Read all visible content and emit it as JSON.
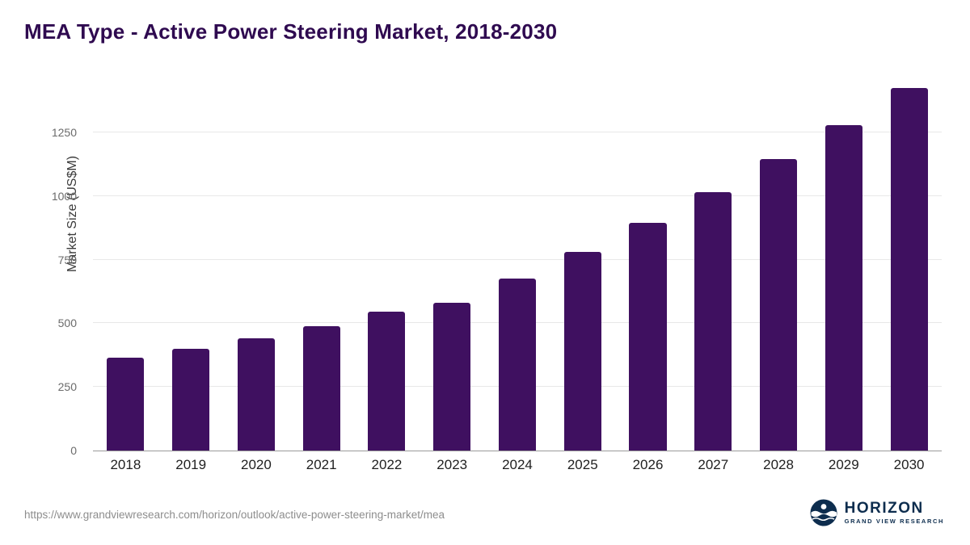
{
  "title": "MEA Type - Active Power Steering Market, 2018-2030",
  "footer": {
    "source_url": "https://www.grandviewresearch.com/horizon/outlook/active-power-steering-market/mea",
    "logo_title": "HORIZON",
    "logo_subtitle": "GRAND VIEW RESEARCH"
  },
  "colors": {
    "bar": "#3f1060",
    "title": "#2f0a50",
    "logo_navy": "#0d2d4e",
    "gridline": "#e8e8e8"
  },
  "chart_data": {
    "type": "bar",
    "title": "MEA Type - Active Power Steering Market, 2018-2030",
    "categories": [
      "2018",
      "2019",
      "2020",
      "2021",
      "2022",
      "2023",
      "2024",
      "2025",
      "2026",
      "2027",
      "2028",
      "2029",
      "2030"
    ],
    "values": [
      365,
      400,
      440,
      490,
      545,
      580,
      675,
      780,
      895,
      1015,
      1145,
      1280,
      1425
    ],
    "xlabel": "",
    "ylabel": "Market Size (US$M)",
    "yticks": [
      0,
      250,
      500,
      750,
      1000,
      1250
    ],
    "ylim": [
      0,
      1460
    ],
    "grid": "horizontal",
    "legend": "none",
    "bar_color": "#3f1060"
  }
}
